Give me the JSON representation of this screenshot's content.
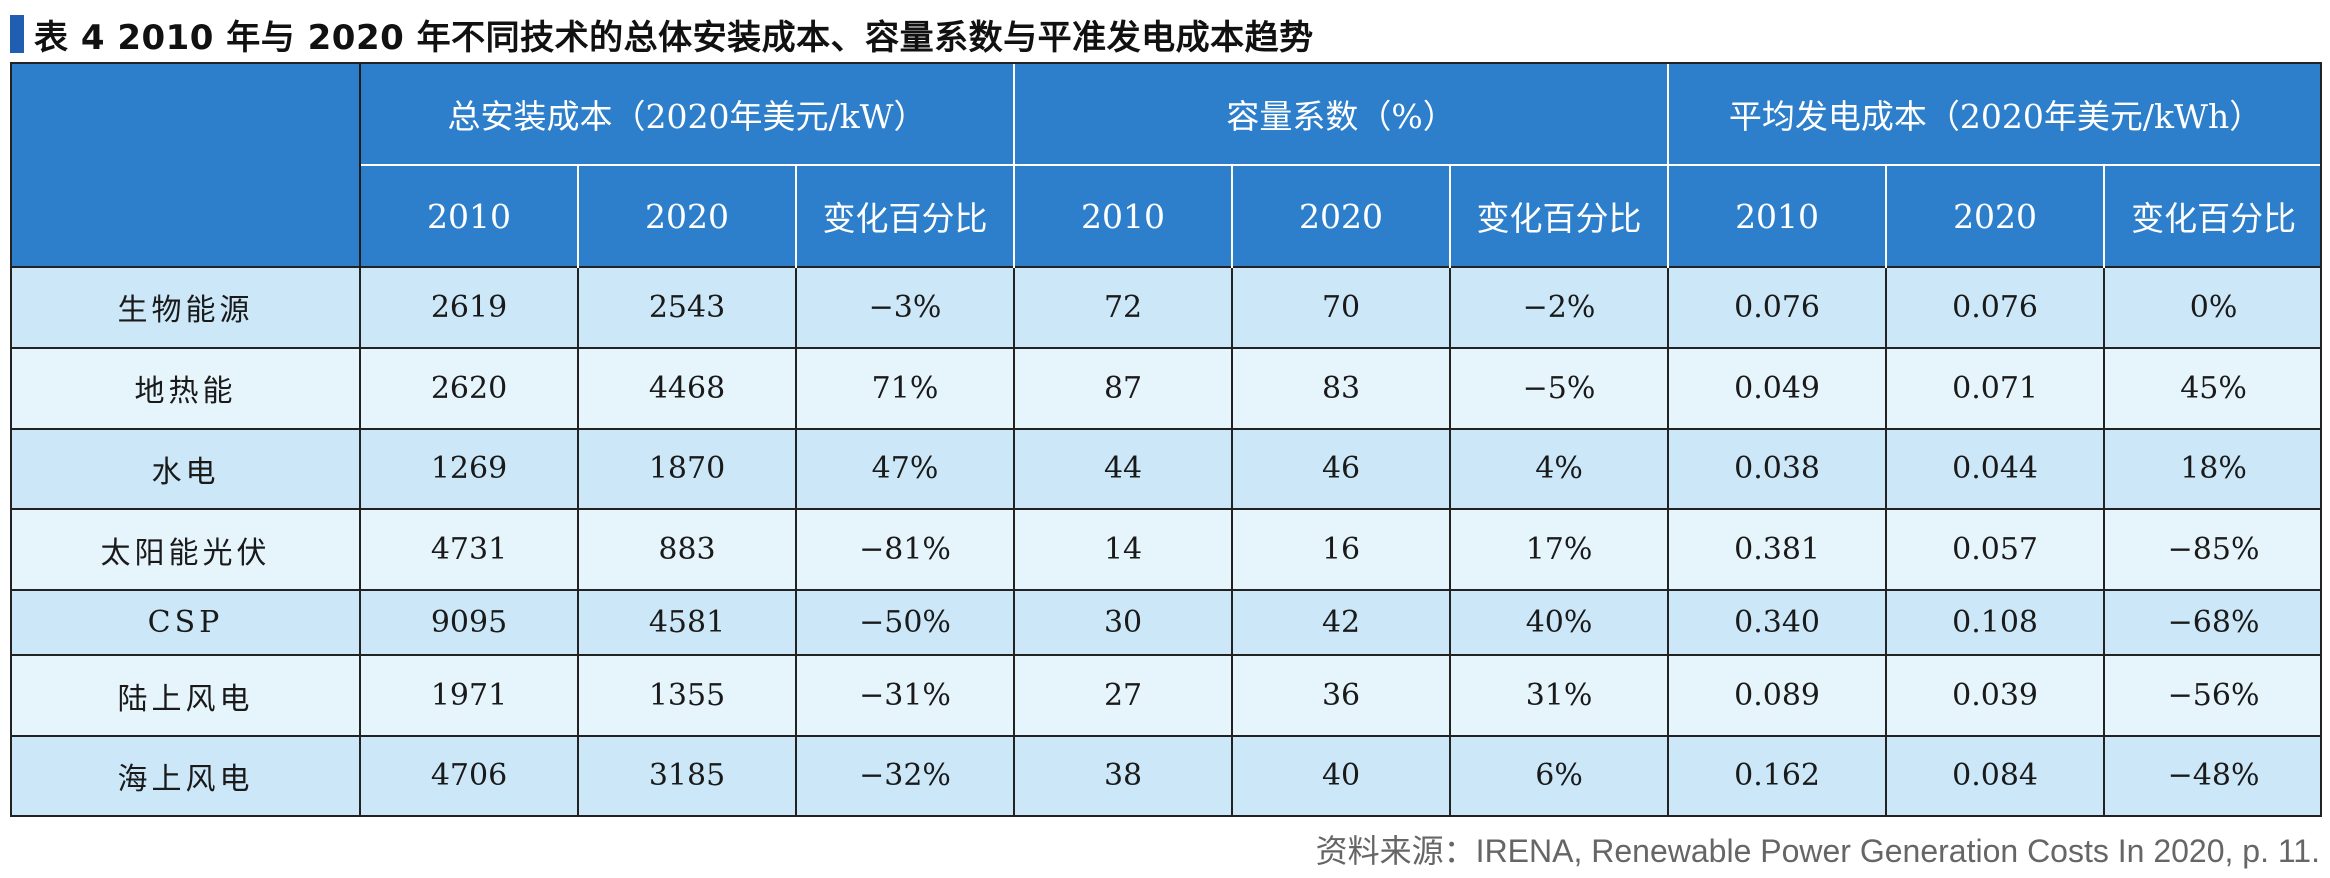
{
  "title": "表 4  2010 年与 2020 年不同技术的总体安装成本、容量系数与平准发电成本趋势",
  "colors": {
    "header_bg": "#2e7fcb",
    "row_odd_bg": "#cce8f8",
    "row_even_bg": "#e6f4fc",
    "title_mark": "#1f5eb0"
  },
  "table": {
    "groups": [
      {
        "label": "总安装成本（2020年美元/kW）"
      },
      {
        "label": "容量系数（%）"
      },
      {
        "label": "平均发电成本（2020年美元/kWh）"
      }
    ],
    "subheaders": [
      "2010",
      "2020",
      "变化百分比",
      "2010",
      "2020",
      "变化百分比",
      "2010",
      "2020",
      "变化百分比"
    ],
    "rows": [
      {
        "label": "生物能源",
        "cells": [
          "2619",
          "2543",
          "−3%",
          "72",
          "70",
          "−2%",
          "0.076",
          "0.076",
          "0%"
        ]
      },
      {
        "label": "地热能",
        "cells": [
          "2620",
          "4468",
          "71%",
          "87",
          "83",
          "−5%",
          "0.049",
          "0.071",
          "45%"
        ]
      },
      {
        "label": "水电",
        "cells": [
          "1269",
          "1870",
          "47%",
          "44",
          "46",
          "4%",
          "0.038",
          "0.044",
          "18%"
        ]
      },
      {
        "label": "太阳能光伏",
        "cells": [
          "4731",
          "883",
          "−81%",
          "14",
          "16",
          "17%",
          "0.381",
          "0.057",
          "−85%"
        ]
      },
      {
        "label": "CSP",
        "cells": [
          "9095",
          "4581",
          "−50%",
          "30",
          "42",
          "40%",
          "0.340",
          "0.108",
          "−68%"
        ]
      },
      {
        "label": "陆上风电",
        "cells": [
          "1971",
          "1355",
          "−31%",
          "27",
          "36",
          "31%",
          "0.089",
          "0.039",
          "−56%"
        ]
      },
      {
        "label": "海上风电",
        "cells": [
          "4706",
          "3185",
          "−32%",
          "38",
          "40",
          "6%",
          "0.162",
          "0.084",
          "−48%"
        ]
      }
    ]
  },
  "source": "资料来源：IRENA, Renewable Power Generation Costs In 2020, p. 11."
}
